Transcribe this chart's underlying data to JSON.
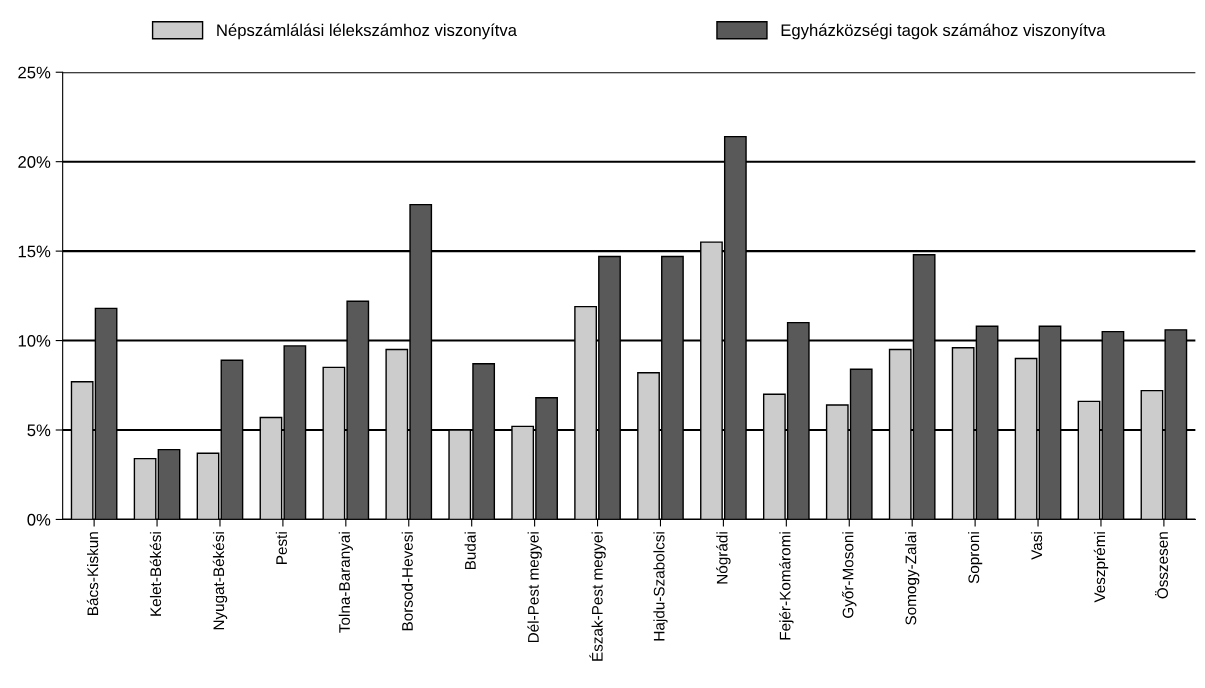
{
  "chart_data": {
    "type": "bar",
    "categories": [
      "Bács-Kiskun",
      "Kelet-Békési",
      "Nyugat-Békési",
      "Pesti",
      "Tolna-Baranyai",
      "Borsod-Hevesi",
      "Budai",
      "Dél-Pest megyei",
      "Észak-Pest megyei",
      "Hajdu-Szabolcsi",
      "Nógrádi",
      "Fejér-Komáromi",
      "Győr-Mosoni",
      "Somogy-Zalai",
      "Soproni",
      "Vasi",
      "Veszprémi",
      "Összesen"
    ],
    "series": [
      {
        "name": "Népszámlálási lélekszámhoz viszonyítva",
        "color": "#cccccc",
        "values": [
          7.7,
          3.4,
          3.7,
          5.7,
          8.5,
          9.5,
          5.0,
          5.2,
          11.9,
          8.2,
          15.5,
          7.0,
          6.4,
          9.5,
          9.6,
          9.0,
          6.6,
          7.2
        ]
      },
      {
        "name": "Egyházközségi tagok számához viszonyítva",
        "color": "#595959",
        "values": [
          11.8,
          3.9,
          8.9,
          9.7,
          12.2,
          17.6,
          8.7,
          6.8,
          14.7,
          14.7,
          21.4,
          11.0,
          8.4,
          14.8,
          10.8,
          10.8,
          10.5,
          10.6
        ]
      }
    ],
    "ylim": [
      0,
      25
    ],
    "yticks": [
      {
        "value": 0,
        "label": "0%"
      },
      {
        "value": 5,
        "label": "5%"
      },
      {
        "value": 10,
        "label": "10%"
      },
      {
        "value": 15,
        "label": "15%"
      },
      {
        "value": 20,
        "label": "20%"
      },
      {
        "value": 25,
        "label": "25%"
      }
    ],
    "grid": "y",
    "legend": "top"
  }
}
